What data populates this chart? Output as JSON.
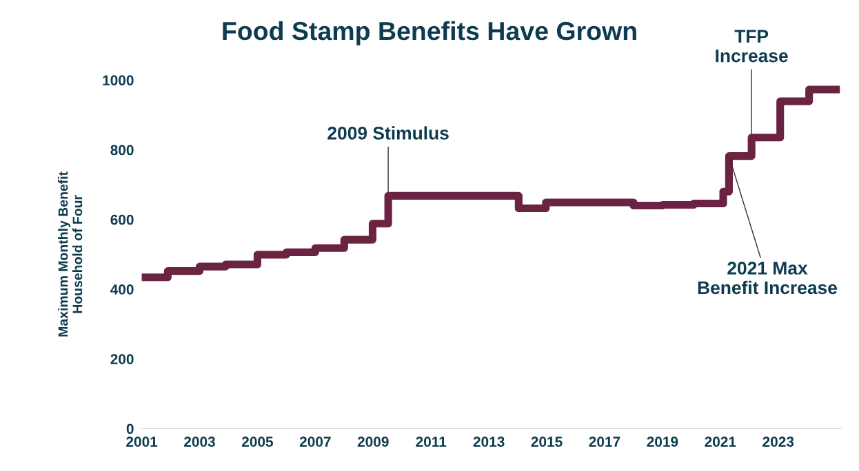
{
  "chart_data": {
    "type": "step",
    "title": "Food Stamp Benefits Have Grown",
    "ylabel": "Maximum Monthly Benefit\nHousehold of Four",
    "x": [
      2001,
      2001.9,
      2003.0,
      2003.9,
      2005.0,
      2006.0,
      2007.0,
      2008.0,
      2008.98,
      2009.52,
      2014.03,
      2014.97,
      2018.0,
      2019.0,
      2020.08,
      2021.1,
      2021.3,
      2022.08,
      2023.07,
      2024.07,
      2025.0
    ],
    "series": [
      {
        "color": "#6b2342",
        "values": [
          434,
          452,
          465,
          471,
          499,
          506,
          518,
          542,
          588,
          668,
          632,
          649,
          640,
          642,
          646,
          680,
          782,
          835,
          939,
          973,
          973
        ]
      }
    ],
    "xlim": [
      2001,
      2025.2
    ],
    "xticks": [
      2001,
      2003,
      2005,
      2007,
      2009,
      2011,
      2013,
      2015,
      2017,
      2019,
      2021,
      2023
    ],
    "ylim": [
      0,
      1000
    ],
    "yticks": [
      0,
      200,
      400,
      600,
      800,
      1000
    ],
    "grid": false,
    "legend": false,
    "annotations": [
      {
        "text": "2009 Stimulus",
        "x": 2009.52,
        "y": 668
      },
      {
        "text": "TFP\nIncrease",
        "x": 2022.08,
        "y": 835
      },
      {
        "text": "2021 Max\nBenefit Increase",
        "x": 2021.3,
        "y": 782
      }
    ]
  }
}
